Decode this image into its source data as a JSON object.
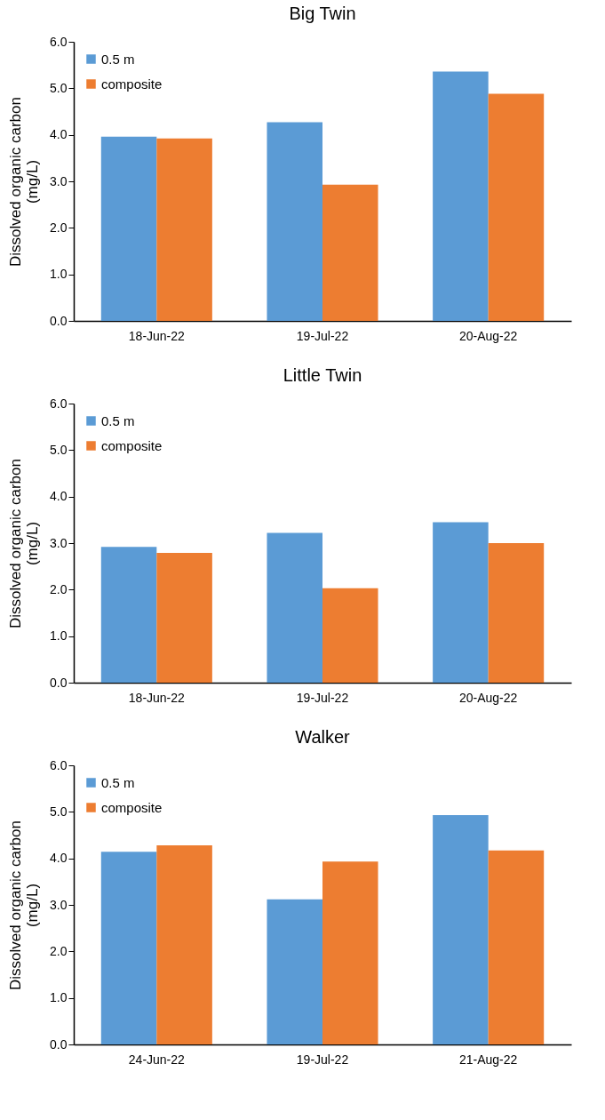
{
  "chart_data": [
    {
      "type": "bar",
      "title": "Big Twin",
      "ylabel": "Dissolved organic carbon (mg/L)",
      "categories": [
        "18-Jun-22",
        "19-Jul-22",
        "20-Aug-22"
      ],
      "series": [
        {
          "name": "0.5 m",
          "color": "#5b9bd5",
          "values": [
            3.96,
            4.27,
            5.36
          ]
        },
        {
          "name": "composite",
          "color": "#ed7d31",
          "values": [
            3.92,
            2.93,
            4.88
          ]
        }
      ],
      "ylim": [
        0,
        6
      ],
      "yticks": [
        {
          "value": 0,
          "label": "0.0"
        },
        {
          "value": 1,
          "label": "1.0"
        },
        {
          "value": 2,
          "label": "2.0"
        },
        {
          "value": 3,
          "label": "3.0"
        },
        {
          "value": 4,
          "label": "4.0"
        },
        {
          "value": 5,
          "label": "5.0"
        },
        {
          "value": 6,
          "label": "6.0"
        }
      ],
      "legend": "top left"
    },
    {
      "type": "bar",
      "title": "Little Twin",
      "ylabel": "Dissolved organic carbon (mg/L)",
      "categories": [
        "18-Jun-22",
        "19-Jul-22",
        "20-Aug-22"
      ],
      "series": [
        {
          "name": "0.5 m",
          "color": "#5b9bd5",
          "values": [
            2.92,
            3.22,
            3.45
          ]
        },
        {
          "name": "composite",
          "color": "#ed7d31",
          "values": [
            2.79,
            2.03,
            3.0
          ]
        }
      ],
      "ylim": [
        0,
        6
      ],
      "yticks": [
        {
          "value": 0,
          "label": "0.0"
        },
        {
          "value": 1,
          "label": "1.0"
        },
        {
          "value": 2,
          "label": "2.0"
        },
        {
          "value": 3,
          "label": "3.0"
        },
        {
          "value": 4,
          "label": "4.0"
        },
        {
          "value": 5,
          "label": "5.0"
        },
        {
          "value": 6,
          "label": "6.0"
        }
      ],
      "legend": "top left"
    },
    {
      "type": "bar",
      "title": "Walker",
      "ylabel": "Dissolved organic carbon (mg/L)",
      "categories": [
        "24-Jun-22",
        "19-Jul-22",
        "21-Aug-22"
      ],
      "series": [
        {
          "name": "0.5 m",
          "color": "#5b9bd5",
          "values": [
            4.14,
            3.12,
            4.93
          ]
        },
        {
          "name": "composite",
          "color": "#ed7d31",
          "values": [
            4.28,
            3.93,
            4.17
          ]
        }
      ],
      "ylim": [
        0,
        6
      ],
      "yticks": [
        {
          "value": 0,
          "label": "0.0"
        },
        {
          "value": 1,
          "label": "1.0"
        },
        {
          "value": 2,
          "label": "2.0"
        },
        {
          "value": 3,
          "label": "3.0"
        },
        {
          "value": 4,
          "label": "4.0"
        },
        {
          "value": 5,
          "label": "5.0"
        },
        {
          "value": 6,
          "label": "6.0"
        }
      ],
      "legend": "top left"
    }
  ]
}
